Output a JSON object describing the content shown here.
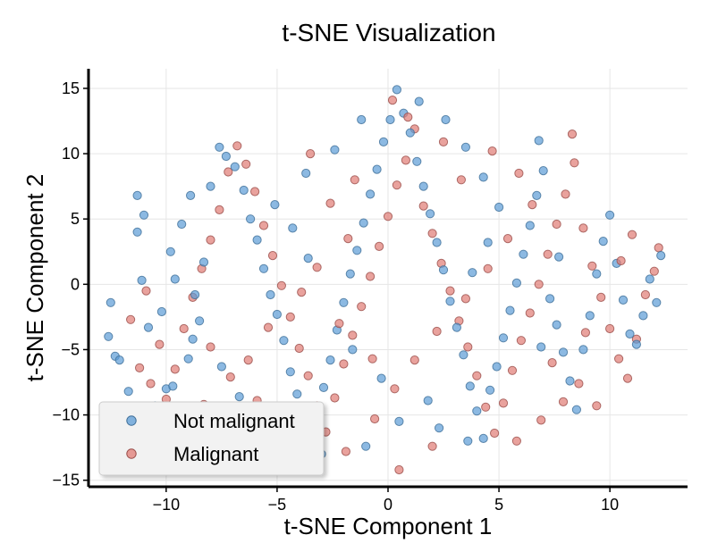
{
  "chart_data": {
    "type": "scatter",
    "title": "t-SNE Visualization",
    "xlabel": "t-SNE Component 1",
    "ylabel": "t-SNE Component 2",
    "xlim": [
      -13.5,
      13.5
    ],
    "ylim": [
      -15.5,
      16.5
    ],
    "xticks": [
      -10,
      -5,
      0,
      5,
      10
    ],
    "yticks": [
      -15,
      -10,
      -5,
      0,
      5,
      10,
      15
    ],
    "grid": true,
    "legend_position": "lower-left",
    "series": [
      {
        "name": "Not malignant",
        "color": "#5b9bd5",
        "edge_color": "#3f6f99",
        "points": [
          [
            -12.6,
            -4.0
          ],
          [
            -12.5,
            -1.4
          ],
          [
            -12.3,
            -5.5
          ],
          [
            -12.1,
            -5.8
          ],
          [
            -11.7,
            -8.2
          ],
          [
            -11.3,
            4.0
          ],
          [
            -11.1,
            0.3
          ],
          [
            -10.8,
            -3.3
          ],
          [
            -11.3,
            6.8
          ],
          [
            -11.0,
            5.3
          ],
          [
            -10.5,
            -9.3
          ],
          [
            -10.0,
            -8.0
          ],
          [
            -9.7,
            -7.8
          ],
          [
            -9.5,
            -10.1
          ],
          [
            -9.2,
            -10.4
          ],
          [
            -9.0,
            -5.7
          ],
          [
            -8.8,
            -4.2
          ],
          [
            -8.5,
            -2.8
          ],
          [
            -8.7,
            -0.8
          ],
          [
            -8.3,
            1.7
          ],
          [
            -9.8,
            2.5
          ],
          [
            -9.3,
            4.6
          ],
          [
            -8.9,
            6.8
          ],
          [
            -8.0,
            7.5
          ],
          [
            -7.6,
            10.5
          ],
          [
            -7.3,
            9.8
          ],
          [
            -6.9,
            9.0
          ],
          [
            -6.5,
            7.2
          ],
          [
            -6.2,
            5.0
          ],
          [
            -5.9,
            3.4
          ],
          [
            -5.6,
            1.2
          ],
          [
            -5.3,
            -0.8
          ],
          [
            -5.0,
            -2.3
          ],
          [
            -4.7,
            -4.3
          ],
          [
            -4.4,
            -6.7
          ],
          [
            -4.1,
            -8.4
          ],
          [
            -3.8,
            -10.9
          ],
          [
            -3.5,
            -12.2
          ],
          [
            -3.2,
            -9.7
          ],
          [
            -2.9,
            -7.9
          ],
          [
            -2.6,
            -5.8
          ],
          [
            -2.3,
            -3.5
          ],
          [
            -2.0,
            -1.4
          ],
          [
            -1.7,
            0.8
          ],
          [
            -1.4,
            2.6
          ],
          [
            -1.1,
            4.7
          ],
          [
            -0.8,
            6.9
          ],
          [
            -0.5,
            8.8
          ],
          [
            -0.2,
            10.9
          ],
          [
            0.1,
            12.6
          ],
          [
            0.4,
            14.9
          ],
          [
            0.7,
            13.1
          ],
          [
            1.0,
            11.6
          ],
          [
            1.3,
            9.4
          ],
          [
            1.6,
            7.5
          ],
          [
            1.9,
            5.4
          ],
          [
            2.2,
            3.2
          ],
          [
            2.5,
            1.1
          ],
          [
            2.8,
            -1.3
          ],
          [
            3.1,
            -3.3
          ],
          [
            3.4,
            -5.4
          ],
          [
            3.7,
            -7.8
          ],
          [
            4.0,
            -9.7
          ],
          [
            4.3,
            -11.8
          ],
          [
            3.6,
            -12.0
          ],
          [
            4.6,
            -8.1
          ],
          [
            4.9,
            -6.3
          ],
          [
            5.2,
            -4.1
          ],
          [
            5.5,
            -2.0
          ],
          [
            5.8,
            0.1
          ],
          [
            6.1,
            2.3
          ],
          [
            6.4,
            4.5
          ],
          [
            6.7,
            6.8
          ],
          [
            7.0,
            8.7
          ],
          [
            6.8,
            11.0
          ],
          [
            7.3,
            -1.1
          ],
          [
            7.6,
            -3.1
          ],
          [
            7.9,
            -5.2
          ],
          [
            8.2,
            -7.4
          ],
          [
            8.5,
            -9.6
          ],
          [
            8.8,
            -5.0
          ],
          [
            9.1,
            -2.4
          ],
          [
            9.4,
            0.8
          ],
          [
            9.7,
            3.3
          ],
          [
            10.0,
            5.3
          ],
          [
            10.3,
            1.6
          ],
          [
            10.6,
            -1.2
          ],
          [
            10.9,
            -3.8
          ],
          [
            11.2,
            -4.6
          ],
          [
            11.5,
            -2.4
          ],
          [
            11.8,
            0.4
          ],
          [
            12.1,
            -1.4
          ],
          [
            12.3,
            2.2
          ],
          [
            -10.2,
            -2.1
          ],
          [
            -9.6,
            0.4
          ],
          [
            -7.5,
            -6.3
          ],
          [
            -6.7,
            -8.6
          ],
          [
            -6.0,
            -10.1
          ],
          [
            -3.0,
            -13.0
          ],
          [
            -1.0,
            -12.4
          ],
          [
            0.5,
            -10.5
          ],
          [
            1.8,
            -8.9
          ],
          [
            2.3,
            -11.0
          ],
          [
            -0.3,
            -7.2
          ],
          [
            -1.6,
            -5.0
          ],
          [
            -3.6,
            2.0
          ],
          [
            -4.3,
            4.3
          ],
          [
            -5.1,
            6.1
          ],
          [
            -3.7,
            8.5
          ],
          [
            -2.4,
            10.3
          ],
          [
            -1.2,
            12.6
          ],
          [
            1.4,
            14.0
          ],
          [
            2.6,
            12.6
          ],
          [
            3.5,
            10.5
          ],
          [
            4.3,
            8.2
          ],
          [
            5.0,
            5.9
          ],
          [
            4.5,
            3.2
          ],
          [
            3.8,
            0.9
          ],
          [
            6.9,
            -4.8
          ],
          [
            7.7,
            2.1
          ]
        ]
      },
      {
        "name": "Malignant",
        "color": "#e07b74",
        "edge_color": "#9a4e4a",
        "points": [
          [
            -11.6,
            -2.7
          ],
          [
            -11.2,
            -6.4
          ],
          [
            -10.7,
            -7.6
          ],
          [
            -10.3,
            -4.6
          ],
          [
            -10.0,
            -8.8
          ],
          [
            -9.6,
            -6.5
          ],
          [
            -9.2,
            -3.4
          ],
          [
            -8.8,
            -1.0
          ],
          [
            -8.4,
            1.2
          ],
          [
            -8.0,
            3.4
          ],
          [
            -7.6,
            5.7
          ],
          [
            -7.2,
            8.6
          ],
          [
            -6.8,
            10.6
          ],
          [
            -6.4,
            9.2
          ],
          [
            -6.0,
            7.1
          ],
          [
            -5.6,
            4.5
          ],
          [
            -5.2,
            2.2
          ],
          [
            -4.8,
            -0.1
          ],
          [
            -4.4,
            -2.5
          ],
          [
            -4.0,
            -4.9
          ],
          [
            -3.6,
            -7.0
          ],
          [
            -3.2,
            -9.3
          ],
          [
            -2.8,
            -11.3
          ],
          [
            -2.4,
            -8.7
          ],
          [
            -2.0,
            -6.1
          ],
          [
            -1.6,
            -3.9
          ],
          [
            -1.2,
            -1.7
          ],
          [
            -0.8,
            0.6
          ],
          [
            -0.4,
            2.9
          ],
          [
            0.0,
            5.2
          ],
          [
            0.4,
            7.6
          ],
          [
            0.8,
            9.5
          ],
          [
            1.2,
            11.9
          ],
          [
            0.2,
            14.1
          ],
          [
            1.6,
            6.0
          ],
          [
            2.0,
            3.9
          ],
          [
            2.4,
            1.6
          ],
          [
            2.8,
            -0.5
          ],
          [
            3.2,
            -2.8
          ],
          [
            3.6,
            -4.8
          ],
          [
            4.0,
            -7.0
          ],
          [
            4.4,
            -9.4
          ],
          [
            4.8,
            -11.4
          ],
          [
            5.2,
            -9.1
          ],
          [
            5.6,
            -6.6
          ],
          [
            6.0,
            -4.3
          ],
          [
            6.4,
            -2.2
          ],
          [
            6.8,
            0.0
          ],
          [
            7.2,
            2.3
          ],
          [
            7.6,
            4.6
          ],
          [
            8.0,
            6.9
          ],
          [
            8.4,
            9.3
          ],
          [
            8.8,
            4.3
          ],
          [
            9.2,
            1.4
          ],
          [
            9.6,
            -1.0
          ],
          [
            10.0,
            -3.4
          ],
          [
            10.4,
            -5.7
          ],
          [
            10.8,
            -7.2
          ],
          [
            11.2,
            -4.2
          ],
          [
            11.6,
            -0.8
          ],
          [
            12.0,
            1.0
          ],
          [
            12.2,
            2.8
          ],
          [
            7.9,
            -9.0
          ],
          [
            8.6,
            -7.6
          ],
          [
            9.4,
            -9.3
          ],
          [
            6.9,
            -10.4
          ],
          [
            5.8,
            -12.0
          ],
          [
            2.0,
            -12.4
          ],
          [
            0.5,
            -14.2
          ],
          [
            -0.6,
            -10.3
          ],
          [
            -1.9,
            -12.8
          ],
          [
            -4.5,
            -11.0
          ],
          [
            -5.9,
            -8.9
          ],
          [
            -7.1,
            -7.1
          ],
          [
            -8.3,
            -9.2
          ],
          [
            -9.0,
            -10.0
          ],
          [
            -3.2,
            1.3
          ],
          [
            -1.8,
            3.5
          ],
          [
            -2.6,
            6.2
          ],
          [
            -3.5,
            10.0
          ],
          [
            -1.5,
            8.0
          ],
          [
            0.9,
            12.8
          ],
          [
            2.5,
            10.9
          ],
          [
            3.3,
            8.0
          ],
          [
            4.7,
            10.2
          ],
          [
            5.9,
            8.5
          ],
          [
            6.5,
            6.1
          ],
          [
            5.4,
            3.5
          ],
          [
            4.5,
            1.2
          ],
          [
            3.5,
            -1.1
          ],
          [
            2.2,
            -3.6
          ],
          [
            1.2,
            -5.8
          ],
          [
            0.3,
            -8.0
          ],
          [
            -0.7,
            -5.7
          ],
          [
            -2.2,
            -3.0
          ],
          [
            -3.9,
            -0.6
          ],
          [
            -5.4,
            -3.3
          ],
          [
            -6.3,
            -5.8
          ],
          [
            7.4,
            -6.0
          ],
          [
            8.9,
            -3.7
          ],
          [
            10.5,
            1.8
          ],
          [
            11.0,
            3.8
          ],
          [
            8.3,
            11.5
          ],
          [
            -10.9,
            -0.5
          ],
          [
            -8.0,
            -4.8
          ]
        ]
      }
    ]
  }
}
